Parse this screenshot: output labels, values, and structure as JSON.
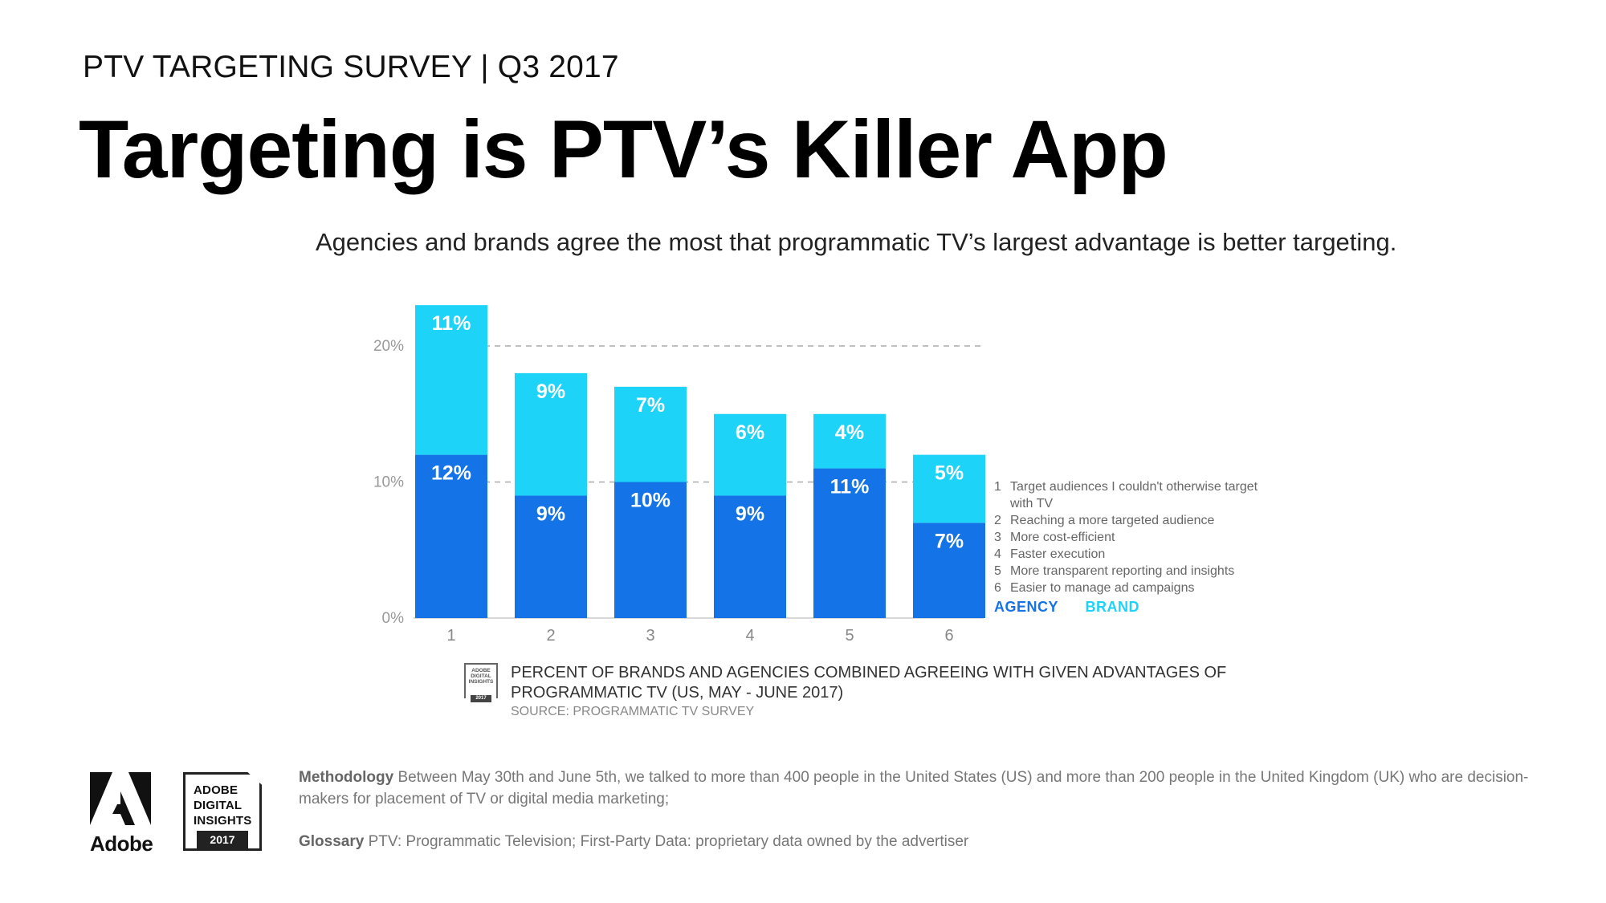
{
  "header": {
    "kicker": "PTV TARGETING SURVEY | Q3 2017",
    "headline": "Targeting is PTV’s Killer App",
    "subtitle": "Agencies and brands agree the most that programmatic TV’s largest advantage is better targeting."
  },
  "chart_data": {
    "type": "bar",
    "stacked": true,
    "categories": [
      "1",
      "2",
      "3",
      "4",
      "5",
      "6"
    ],
    "series": [
      {
        "name": "AGENCY",
        "color": "#1473e6",
        "values": [
          12,
          9,
          10,
          9,
          11,
          7
        ],
        "labels": [
          "12%",
          "9%",
          "10%",
          "9%",
          "11%",
          "7%"
        ]
      },
      {
        "name": "BRAND",
        "color": "#1dd3f8",
        "values": [
          11,
          9,
          7,
          6,
          4,
          5
        ],
        "labels": [
          "11%",
          "9%",
          "7%",
          "6%",
          "4%",
          "5%"
        ]
      }
    ],
    "yticks": [
      0,
      10,
      20
    ],
    "ytick_labels": [
      "0%",
      "10%",
      "20%"
    ],
    "ylim": [
      0,
      23
    ],
    "gridlines": [
      10,
      20
    ],
    "category_descriptions": [
      {
        "num": "1",
        "text": "Target audiences I couldn't otherwise target with TV"
      },
      {
        "num": "2",
        "text": "Reaching a more targeted audience"
      },
      {
        "num": "3",
        "text": "More cost-efficient"
      },
      {
        "num": "4",
        "text": "Faster execution"
      },
      {
        "num": "5",
        "text": "More transparent reporting and insights"
      },
      {
        "num": "6",
        "text": "Easier to manage ad campaigns"
      }
    ],
    "legend": [
      "AGENCY",
      "BRAND"
    ]
  },
  "caption": {
    "badge_lines": [
      "ADOBE",
      "DIGITAL",
      "INSIGHTS"
    ],
    "badge_year": "2017",
    "text": "PERCENT OF BRANDS AND AGENCIES COMBINED AGREEING WITH GIVEN ADVANTAGES OF PROGRAMMATIC TV (US, MAY - JUNE 2017)",
    "source": "SOURCE: PROGRAMMATIC TV SURVEY"
  },
  "footer": {
    "brand": "Adobe",
    "badge_line1": "ADOBE",
    "badge_line2": "DIGITAL",
    "badge_line3": "INSIGHTS",
    "badge_year": "2017",
    "methodology_label": "Methodology",
    "methodology_text": "Between May 30th and June 5th, we talked to more than 400 people in the United States (US) and more than 200 people in the United Kingdom (UK) who are decision-makers for placement of TV or digital media marketing;",
    "glossary_label": "Glossary",
    "glossary_text": "PTV: Programmatic Television; First-Party Data: proprietary data owned by the advertiser"
  }
}
